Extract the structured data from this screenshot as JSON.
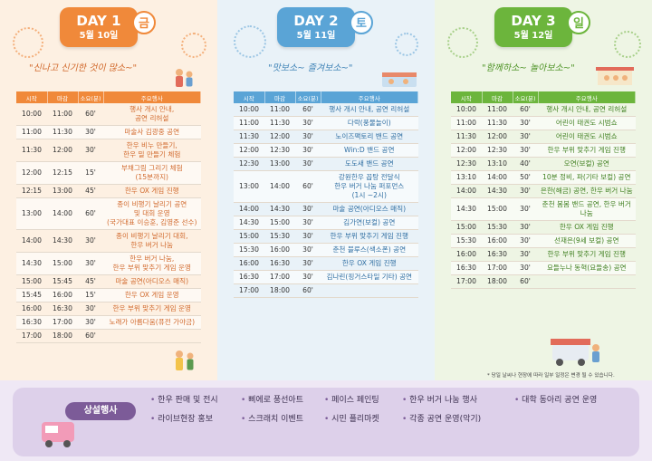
{
  "days": [
    {
      "day": "DAY 1",
      "date": "5월 10일",
      "weekday": "금",
      "slogan": "\"신나고 신기한 것이 많소~\"",
      "headers": [
        "시작",
        "마감",
        "소요(분)",
        "주요행사"
      ],
      "rows": [
        {
          "start": "10:00",
          "end": "11:00",
          "dur": "60'",
          "event": "행사 개시 안내,\n공연 리허설"
        },
        {
          "start": "11:00",
          "end": "11:30",
          "dur": "30'",
          "event": "마술사 김광중 공연"
        },
        {
          "start": "11:30",
          "end": "12:00",
          "dur": "30'",
          "event": "한우 비누 만들기,\n한우 밀 만들기 체험"
        },
        {
          "start": "12:00",
          "end": "12:15",
          "dur": "15'",
          "event": "부채그림 그리기 체험\n(15분까지)"
        },
        {
          "start": "12:15",
          "end": "13:00",
          "dur": "45'",
          "event": "한우 OX 게임 진행"
        },
        {
          "start": "13:00",
          "end": "14:00",
          "dur": "60'",
          "event": "종이 비행기 날리기 공연\n및 대회 운영\n(국가대표 이승훈, 김영준 선수)"
        },
        {
          "start": "14:00",
          "end": "14:30",
          "dur": "30'",
          "event": "종이 비행기 날리기 대회,\n한우 버거 나눔"
        },
        {
          "start": "14:30",
          "end": "15:00",
          "dur": "30'",
          "event": "한우 버거 나눔,\n한우 부위 맞추기 게임 운영"
        },
        {
          "start": "15:00",
          "end": "15:45",
          "dur": "45'",
          "event": "마술 공연(아디오스 매직)"
        },
        {
          "start": "15:45",
          "end": "16:00",
          "dur": "15'",
          "event": "한우 OX 게임 운영"
        },
        {
          "start": "16:00",
          "end": "16:30",
          "dur": "30'",
          "event": "한우 부위 맞추기 게임 운영"
        },
        {
          "start": "16:30",
          "end": "17:00",
          "dur": "30'",
          "event": "노래가 아름다움(퓨전 가야금)"
        },
        {
          "start": "17:00",
          "end": "18:00",
          "dur": "60'",
          "event": ""
        }
      ]
    },
    {
      "day": "DAY 2",
      "date": "5월 11일",
      "weekday": "토",
      "slogan": "\"맛보소~ 즐겨보소~\"",
      "headers": [
        "시작",
        "마감",
        "소요(분)",
        "주요행사"
      ],
      "rows": [
        {
          "start": "10:00",
          "end": "11:00",
          "dur": "60'",
          "event": "행사 개시 안내, 공연 리허설"
        },
        {
          "start": "11:00",
          "end": "11:30",
          "dur": "30'",
          "event": "다락(풍물놀이)"
        },
        {
          "start": "11:30",
          "end": "12:00",
          "dur": "30'",
          "event": "노이즈팩토리 밴드 공연"
        },
        {
          "start": "12:00",
          "end": "12:30",
          "dur": "30'",
          "event": "Win:D 밴드 공연"
        },
        {
          "start": "12:30",
          "end": "13:00",
          "dur": "30'",
          "event": "도도새 밴드 공연"
        },
        {
          "start": "13:00",
          "end": "14:00",
          "dur": "60'",
          "event": "강원한우 꼽탕 전달식\n한우 버거 나눔 퍼포먼스\n(1시 ~2시)"
        },
        {
          "start": "14:00",
          "end": "14:30",
          "dur": "30'",
          "event": "마술 공연(아디오스 매직)"
        },
        {
          "start": "14:30",
          "end": "15:00",
          "dur": "30'",
          "event": "김가연(보컬) 공연"
        },
        {
          "start": "15:00",
          "end": "15:30",
          "dur": "30'",
          "event": "한우 부위 맞추기 게임 진행"
        },
        {
          "start": "15:30",
          "end": "16:00",
          "dur": "30'",
          "event": "춘천 블루스(색소폰) 공연"
        },
        {
          "start": "16:00",
          "end": "16:30",
          "dur": "30'",
          "event": "한우 OX 게임 진행"
        },
        {
          "start": "16:30",
          "end": "17:00",
          "dur": "30'",
          "event": "김나린(핑거스타일 기타) 공연"
        },
        {
          "start": "17:00",
          "end": "18:00",
          "dur": "60'",
          "event": ""
        }
      ]
    },
    {
      "day": "DAY 3",
      "date": "5월 12일",
      "weekday": "일",
      "slogan": "\"함께하소~ 놀아보소~\"",
      "headers": [
        "시작",
        "마감",
        "소요(분)",
        "주요행사"
      ],
      "rows": [
        {
          "start": "10:00",
          "end": "11:00",
          "dur": "60'",
          "event": "행사 개시 안내, 공연 리허설"
        },
        {
          "start": "11:00",
          "end": "11:30",
          "dur": "30'",
          "event": "어린이 태권도 시범쇼"
        },
        {
          "start": "11:30",
          "end": "12:00",
          "dur": "30'",
          "event": "어린이 태권도 시범쇼"
        },
        {
          "start": "12:00",
          "end": "12:30",
          "dur": "30'",
          "event": "한우 부위 맞추기 게임 진행"
        },
        {
          "start": "12:30",
          "end": "13:10",
          "dur": "40'",
          "event": "오연(보컬) 공연"
        },
        {
          "start": "13:10",
          "end": "14:00",
          "dur": "50'",
          "event": "10분 정비, 파(기타 보컬) 공연"
        },
        {
          "start": "14:00",
          "end": "14:30",
          "dur": "30'",
          "event": "은한(해금) 공연, 한우 버거 나눔"
        },
        {
          "start": "14:30",
          "end": "15:00",
          "dur": "30'",
          "event": "춘천 봄봄 밴드 공연, 한우 버거 나눔"
        },
        {
          "start": "15:00",
          "end": "15:30",
          "dur": "30'",
          "event": "한우 OX 게임 진행"
        },
        {
          "start": "15:30",
          "end": "16:00",
          "dur": "30'",
          "event": "선재은(9세 보컬) 공연"
        },
        {
          "start": "16:00",
          "end": "16:30",
          "dur": "30'",
          "event": "한우 부위 맞추기 게임 진행"
        },
        {
          "start": "16:30",
          "end": "17:00",
          "dur": "30'",
          "event": "요들누나 동혁(요들송) 공연"
        },
        {
          "start": "17:00",
          "end": "18:00",
          "dur": "60'",
          "event": ""
        }
      ]
    }
  ],
  "note": "* 당일 날씨나 현장에 따라 일부 일정은 변경 될 수 있습니다.",
  "footer": {
    "label": "상설행사",
    "items_row1": [
      "한우 판매 및 전시",
      "삐에로 풍선아트",
      "페이스 페인팅",
      "한우 버거 나눔 행사",
      "대학 동아리 공연 운영"
    ],
    "items_row2": [
      "라이브현장 홍보",
      "스크래치 이벤트",
      "시민 플리마켓",
      "각종 공연 운영(악기)"
    ]
  },
  "colors": {
    "day1": "#f0893a",
    "day2": "#5aa4d6",
    "day3": "#6cb53c",
    "footer": "#7c5b98"
  }
}
